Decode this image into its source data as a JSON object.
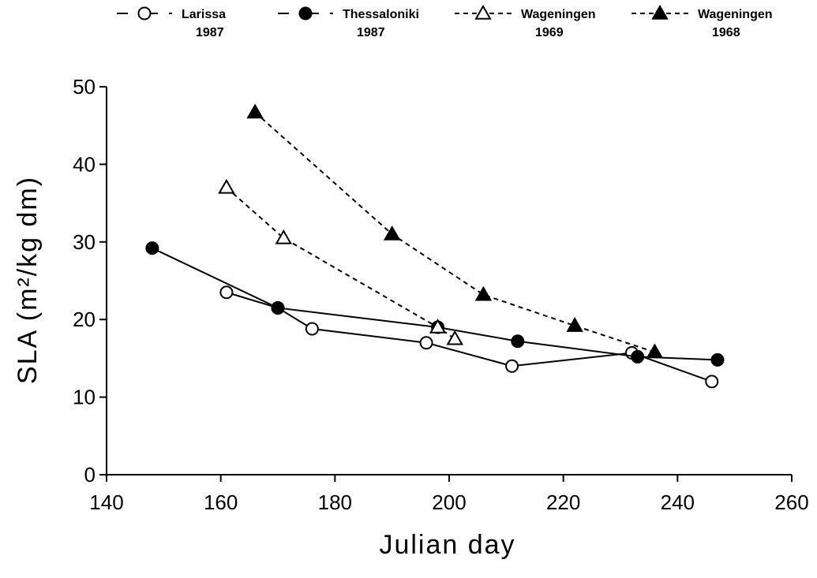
{
  "chart_data": {
    "type": "line",
    "title": "",
    "xlabel": "Julian day",
    "ylabel": "SLA (m²/kg dm)",
    "xlim": [
      140,
      260
    ],
    "ylim": [
      0,
      50
    ],
    "xticks": [
      140,
      160,
      180,
      200,
      220,
      240,
      260
    ],
    "yticks": [
      0,
      10,
      20,
      30,
      40,
      50
    ],
    "grid": false,
    "legend_position": "top",
    "series": [
      {
        "name": "Larissa",
        "name_line2": "1987",
        "marker": "circle-open",
        "line_style": "solid",
        "x": [
          161,
          170,
          176,
          196,
          211,
          232,
          246
        ],
        "y": [
          23.5,
          21.5,
          18.8,
          17.0,
          14.0,
          15.7,
          12.0
        ]
      },
      {
        "name": "Thessaloniki",
        "name_line2": "1987",
        "marker": "circle-filled",
        "line_style": "solid",
        "x": [
          148,
          170,
          198,
          212,
          233,
          247
        ],
        "y": [
          29.2,
          21.5,
          19.0,
          17.2,
          15.2,
          14.8
        ]
      },
      {
        "name": "Wageningen",
        "name_line2": "1969",
        "marker": "triangle-open",
        "line_style": "dashed",
        "x": [
          161,
          171,
          198,
          201
        ],
        "y": [
          37.0,
          30.5,
          19.0,
          17.5
        ]
      },
      {
        "name": "Wageningen",
        "name_line2": "1968",
        "marker": "triangle-filled",
        "line_style": "dashed",
        "x": [
          166,
          190,
          206,
          222,
          236
        ],
        "y": [
          46.7,
          31.0,
          23.2,
          19.2,
          15.8
        ]
      }
    ]
  }
}
